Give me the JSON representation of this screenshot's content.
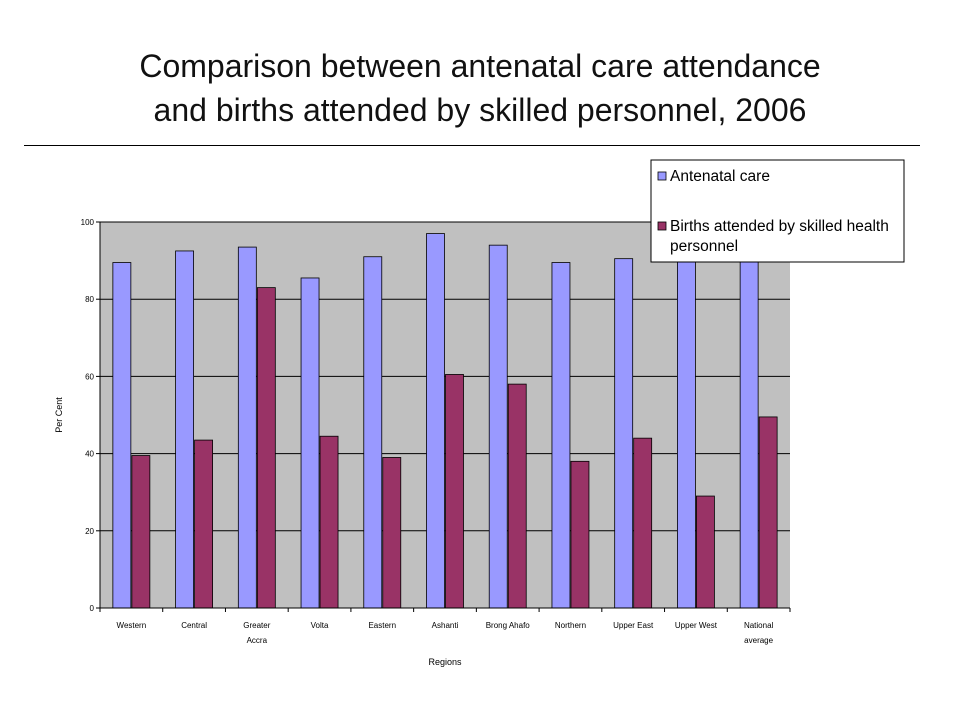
{
  "slide": {
    "title_line1": "Comparison between antenatal care attendance",
    "title_line2": "and births attended by skilled personnel, 2006"
  },
  "chart_data": {
    "type": "bar",
    "categories": [
      [
        "Western"
      ],
      [
        "Central"
      ],
      [
        "Greater",
        "Accra"
      ],
      [
        "Volta"
      ],
      [
        "Eastern"
      ],
      [
        "Ashanti"
      ],
      [
        "Brong Ahafo"
      ],
      [
        "Northern"
      ],
      [
        "Upper East"
      ],
      [
        "Upper West"
      ],
      [
        "National",
        "average"
      ]
    ],
    "series": [
      {
        "name": "Antenatal care",
        "color": "#9999ff",
        "values": [
          89.5,
          92.5,
          93.5,
          85.5,
          91,
          97,
          94,
          89.5,
          90.5,
          91,
          91.5
        ]
      },
      {
        "name": [
          "Births attended by skilled health",
          "personnel"
        ],
        "color": "#993366",
        "values": [
          39.5,
          43.5,
          83,
          44.5,
          39,
          60.5,
          58,
          38,
          44,
          29,
          49.5
        ]
      }
    ],
    "ylabel": "Per Cent",
    "xlabel": "Regions",
    "ylim": [
      0,
      100
    ],
    "yticks": [
      0,
      20,
      40,
      60,
      80,
      100
    ],
    "grid": true,
    "plot_background": "#c0c0c0",
    "legend_position": "top-right"
  }
}
